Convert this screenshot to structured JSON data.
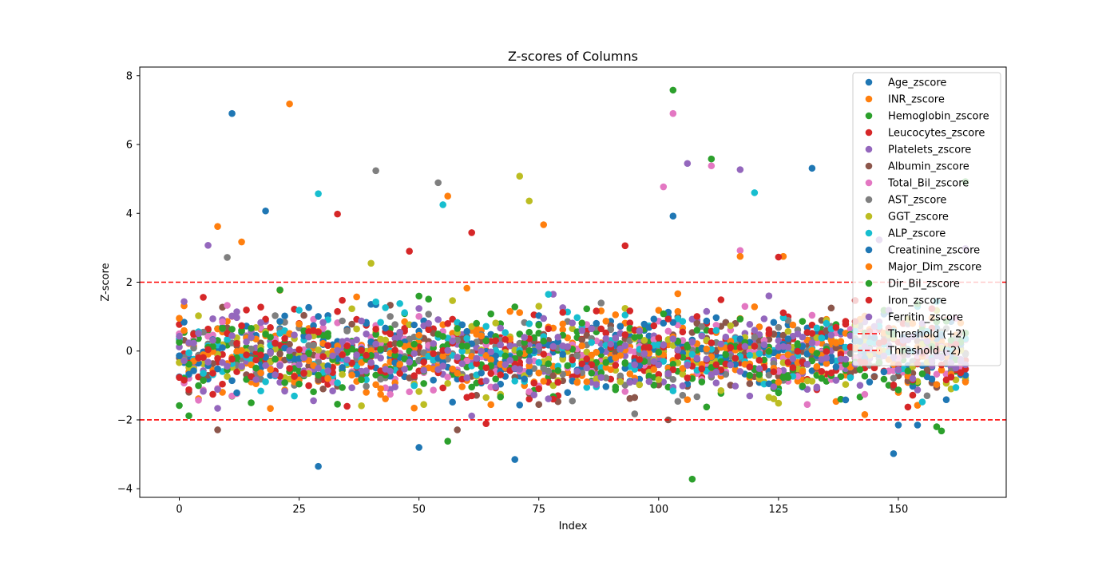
{
  "chart_data": {
    "type": "scatter",
    "title": "Z-scores of Columns",
    "xlabel": "Index",
    "ylabel": "Z-score",
    "xlim": [
      -8.25,
      172.5
    ],
    "ylim": [
      -4.25,
      8.25
    ],
    "xticks": [
      0,
      25,
      50,
      75,
      100,
      125,
      150
    ],
    "yticks": [
      -4,
      -2,
      0,
      2,
      4,
      6,
      8
    ],
    "grid": false,
    "legend_position": "top-right",
    "n_points": 165,
    "series": [
      {
        "name": "Age_zscore",
        "color": "#1f77b4",
        "highlights": [
          [
            11,
            6.9
          ],
          [
            18,
            4.07
          ],
          [
            29,
            -3.35
          ],
          [
            50,
            -2.8
          ],
          [
            70,
            -3.15
          ],
          [
            103,
            3.92
          ]
        ]
      },
      {
        "name": "INR_zscore",
        "color": "#ff7f0e",
        "highlights": [
          [
            8,
            3.62
          ],
          [
            13,
            3.17
          ],
          [
            23,
            7.18
          ],
          [
            56,
            4.5
          ],
          [
            76,
            3.67
          ]
        ]
      },
      {
        "name": "Hemoglobin_zscore",
        "color": "#2ca02c",
        "highlights": [
          [
            2,
            -1.88
          ],
          [
            56,
            -2.62
          ],
          [
            103,
            7.58
          ],
          [
            107,
            -3.72
          ],
          [
            111,
            5.58
          ],
          [
            164,
            4.92
          ]
        ]
      },
      {
        "name": "Leucocytes_zscore",
        "color": "#d62728",
        "highlights": [
          [
            33,
            3.98
          ],
          [
            61,
            3.44
          ],
          [
            93,
            3.06
          ],
          [
            64,
            -2.11
          ]
        ]
      },
      {
        "name": "Platelets_zscore",
        "color": "#9467bd",
        "highlights": [
          [
            6,
            3.07
          ],
          [
            106,
            5.45
          ],
          [
            117,
            5.27
          ],
          [
            164,
            2.98
          ]
        ]
      },
      {
        "name": " Albumin_zscore",
        "color": "#8c564b",
        "highlights": [
          [
            8,
            -2.29
          ],
          [
            58,
            -2.29
          ],
          [
            102,
            -2.0
          ]
        ]
      },
      {
        "name": "Total_Bil_zscore",
        "color": "#e377c2",
        "highlights": [
          [
            103,
            6.9
          ],
          [
            101,
            4.77
          ],
          [
            111,
            5.38
          ],
          [
            117,
            2.92
          ]
        ]
      },
      {
        "name": "AST_zscore",
        "color": "#7f7f7f",
        "highlights": [
          [
            41,
            5.24
          ],
          [
            54,
            4.89
          ],
          [
            10,
            2.72
          ]
        ]
      },
      {
        "name": "GGT_zscore",
        "color": "#bcbd22",
        "highlights": [
          [
            71,
            5.08
          ],
          [
            73,
            4.36
          ],
          [
            40,
            2.55
          ]
        ]
      },
      {
        "name": "ALP_zscore",
        "color": "#17becf",
        "highlights": [
          [
            29,
            4.57
          ],
          [
            55,
            4.25
          ],
          [
            120,
            4.6
          ]
        ]
      },
      {
        "name": "Creatinine_zscore",
        "color": "#1f77b4",
        "highlights": [
          [
            132,
            5.31
          ],
          [
            149,
            -2.98
          ],
          [
            150,
            -2.15
          ],
          [
            154,
            -2.15
          ]
        ]
      },
      {
        "name": "Major_Dim_zscore",
        "color": "#ff7f0e",
        "highlights": [
          [
            117,
            2.75
          ],
          [
            126,
            2.75
          ]
        ]
      },
      {
        "name": "Dir_Bil_zscore",
        "color": "#2ca02c",
        "highlights": [
          [
            158,
            -2.2
          ],
          [
            159,
            -2.32
          ]
        ]
      },
      {
        "name": "Iron_zscore",
        "color": "#d62728",
        "highlights": [
          [
            48,
            2.9
          ],
          [
            125,
            2.73
          ]
        ]
      },
      {
        "name": "Ferritin_zscore",
        "color": "#9467bd",
        "highlights": [
          [
            146,
            3.23
          ]
        ]
      }
    ],
    "threshold_lines": [
      {
        "name": "Threshold (+2)",
        "y": 2,
        "color": "#ff0000",
        "style": "dashed"
      },
      {
        "name": "Threshold (-2)",
        "y": -2,
        "color": "#ff0000",
        "style": "dashed"
      }
    ]
  }
}
